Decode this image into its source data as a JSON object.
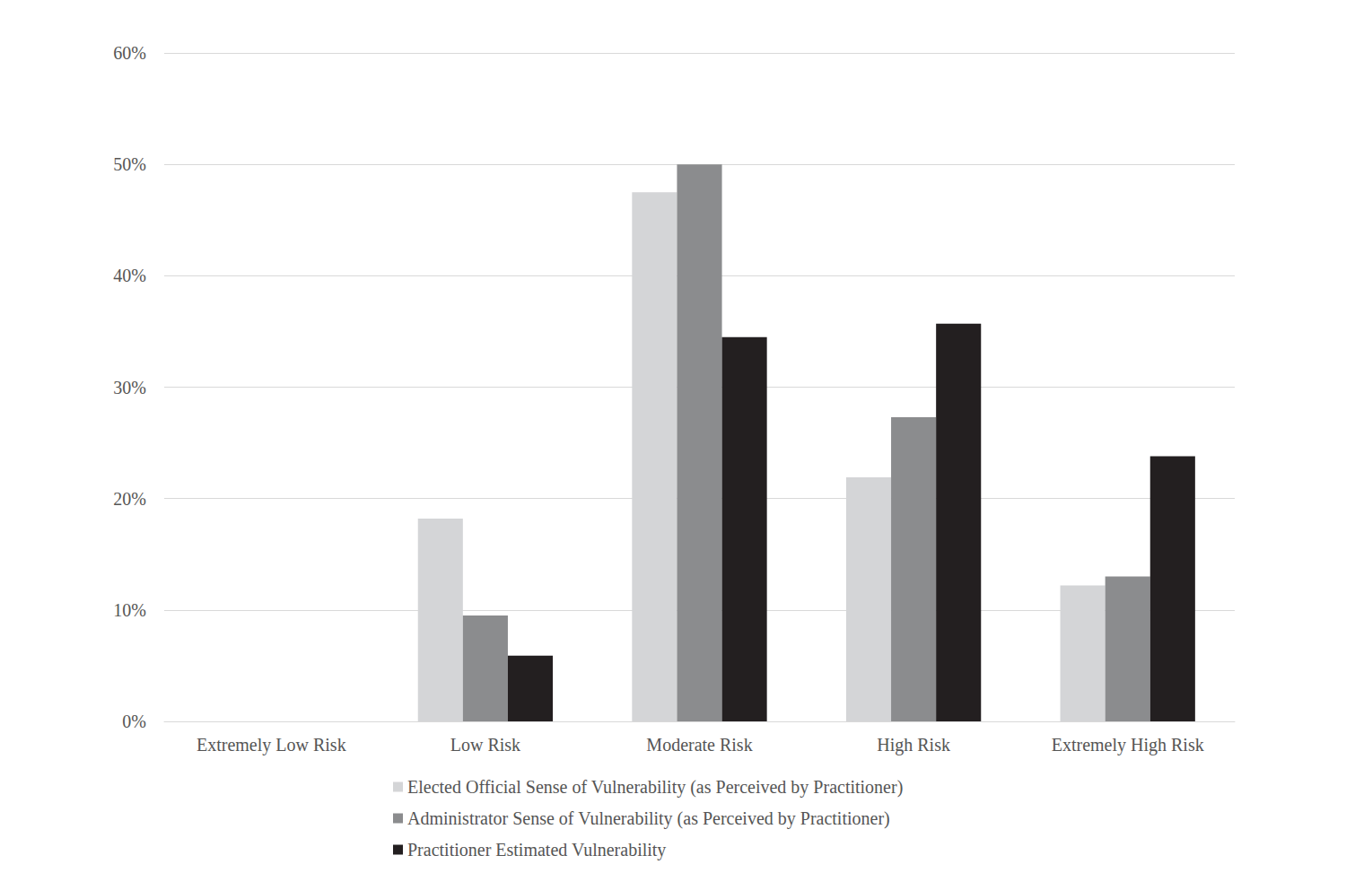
{
  "chart_data": {
    "type": "bar",
    "categories": [
      "Extremely Low Risk",
      "Low Risk",
      "Moderate Risk",
      "High Risk",
      "Extremely High Risk"
    ],
    "series": [
      {
        "name": "Elected Official Sense of Vulnerability (as Perceived by Practitioner)",
        "color": "#d4d5d7",
        "values": [
          0,
          18.2,
          47.5,
          21.9,
          12.2
        ]
      },
      {
        "name": "Administrator Sense of Vulnerability (as Perceived by Practitioner)",
        "color": "#8b8c8e",
        "values": [
          0,
          9.5,
          50,
          27.3,
          13.0
        ]
      },
      {
        "name": "Practitioner Estimated Vulnerability",
        "color": "#231f20",
        "values": [
          0,
          5.9,
          34.5,
          35.7,
          23.8
        ]
      }
    ],
    "ylim": [
      0,
      60
    ],
    "yticks": [
      {
        "value": 0,
        "label": "0%"
      },
      {
        "value": 10,
        "label": "10%"
      },
      {
        "value": 20,
        "label": "20%"
      },
      {
        "value": 30,
        "label": "30%"
      },
      {
        "value": 40,
        "label": "40%"
      },
      {
        "value": 50,
        "label": "50%"
      },
      {
        "value": 60,
        "label": "60%"
      }
    ],
    "grid": true,
    "legend": "bottom"
  }
}
